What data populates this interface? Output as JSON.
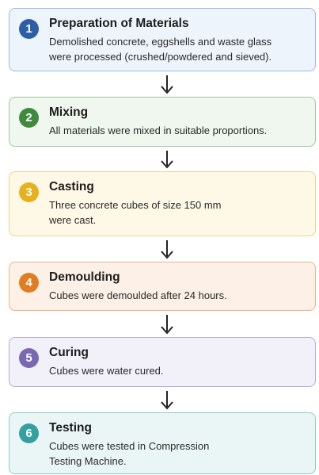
{
  "steps": [
    {
      "number": 1,
      "title": "Preparation of Materials",
      "lines": [
        "Demolished concrete, eggshells and waste glass",
        "were processed (crushed/powdered and sieved)."
      ]
    },
    {
      "number": 2,
      "title": "Mixing",
      "lines": [
        "All materials were mixed in suitable proportions."
      ]
    },
    {
      "number": 3,
      "title": "Casting",
      "lines": [
        "Three concrete cubes of size 150 mm",
        "were cast."
      ]
    },
    {
      "number": 4,
      "title": "Demoulding",
      "lines": [
        "Cubes were demoulded after 24 hours."
      ]
    },
    {
      "number": 5,
      "title": "Curing",
      "lines": [
        "Cubes were water cured."
      ]
    },
    {
      "number": 6,
      "title": "Testing",
      "lines": [
        "Cubes were tested in Compression",
        "Testing Machine."
      ]
    }
  ]
}
